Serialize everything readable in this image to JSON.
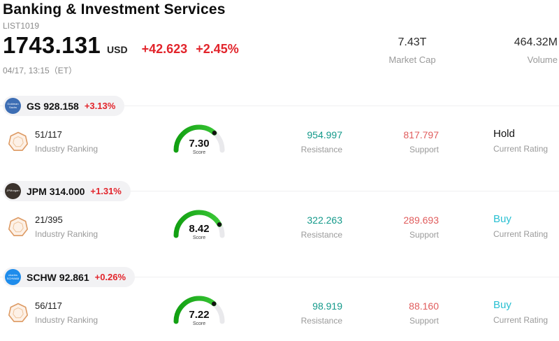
{
  "header": {
    "title": "Banking & Investment Services",
    "subtitle": "LIST1019"
  },
  "quote": {
    "price": "1743.131",
    "currency": "USD",
    "change": "+42.623",
    "change_pct": "+2.45%",
    "datetime": "04/17, 13:15（ET）"
  },
  "stats": {
    "market_cap": {
      "value": "7.43T",
      "label": "Market Cap"
    },
    "volume": {
      "value": "464.32M",
      "label": "Volume"
    }
  },
  "labels": {
    "ranking": "Industry Ranking",
    "score": "Score",
    "resistance": "Resistance",
    "support": "Support",
    "rating": "Current Rating"
  },
  "colors": {
    "up": "#e2242b",
    "resistance": "#13998a",
    "support": "#e05c5c",
    "buy": "#2ac0d2",
    "hold": "#111111",
    "gauge_green": "#1db21d",
    "gauge_track": "#e9e9ec"
  },
  "stocks": [
    {
      "ticker": "GS",
      "price": "928.158",
      "change": "+3.13%",
      "logo_text": "Goldman Sachs",
      "logo_bg": "#3d6eb4",
      "ranking": "51/117",
      "score": "7.30",
      "score_value": 7.3,
      "resistance": "954.997",
      "support": "817.797",
      "rating": "Hold",
      "rating_type": "hold"
    },
    {
      "ticker": "JPM",
      "price": "314.000",
      "change": "+1.31%",
      "logo_text": "JPMorgan",
      "logo_bg": "#3b332d",
      "ranking": "21/395",
      "score": "8.42",
      "score_value": 8.42,
      "resistance": "322.263",
      "support": "289.693",
      "rating": "Buy",
      "rating_type": "buy"
    },
    {
      "ticker": "SCHW",
      "price": "92.861",
      "change": "+0.26%",
      "logo_text": "charles SCHWAB",
      "logo_bg": "#1e8ceb",
      "ranking": "56/117",
      "score": "7.22",
      "score_value": 7.22,
      "resistance": "98.919",
      "support": "88.160",
      "rating": "Buy",
      "rating_type": "buy"
    }
  ]
}
